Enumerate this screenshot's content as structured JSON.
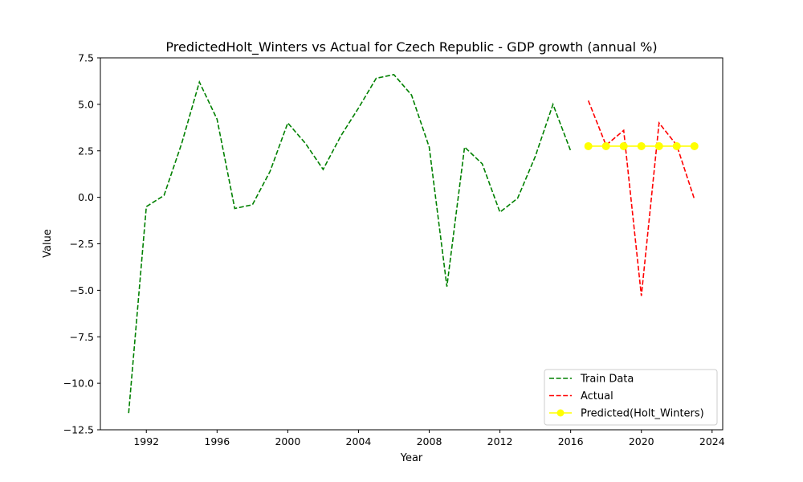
{
  "chart_data": {
    "type": "line",
    "title": "PredictedHolt_Winters vs Actual for Czech Republic - GDP growth (annual %)",
    "xlabel": "Year",
    "ylabel": "Value",
    "xlim": [
      1989.4,
      2024.6
    ],
    "ylim": [
      -12.5,
      7.5
    ],
    "xticks": [
      1992,
      1996,
      2000,
      2004,
      2008,
      2012,
      2016,
      2020,
      2024
    ],
    "xtick_labels": [
      "1992",
      "1996",
      "2000",
      "2004",
      "2008",
      "2012",
      "2016",
      "2020",
      "2024"
    ],
    "yticks": [
      -12.5,
      -10.0,
      -7.5,
      -5.0,
      -2.5,
      0.0,
      2.5,
      5.0,
      7.5
    ],
    "ytick_labels": [
      "−12.5",
      "−10.0",
      "−7.5",
      "−5.0",
      "−2.5",
      "0.0",
      "2.5",
      "5.0",
      "7.5"
    ],
    "grid": false,
    "legend_position": "lower-right",
    "series": [
      {
        "name": "Train Data",
        "color": "#008000",
        "style": "dashed",
        "x": [
          1991,
          1992,
          1993,
          1994,
          1995,
          1996,
          1997,
          1998,
          1999,
          2000,
          2001,
          2002,
          2003,
          2004,
          2005,
          2006,
          2007,
          2008,
          2009,
          2010,
          2011,
          2012,
          2013,
          2014,
          2015,
          2016
        ],
        "y": [
          -11.6,
          -0.5,
          0.1,
          2.9,
          6.2,
          4.2,
          -0.6,
          -0.4,
          1.4,
          4.0,
          2.9,
          1.5,
          3.3,
          4.8,
          6.4,
          6.6,
          5.5,
          2.7,
          -4.8,
          2.7,
          1.8,
          -0.8,
          -0.05,
          2.2,
          5.0,
          2.5
        ]
      },
      {
        "name": "Actual",
        "color": "#ff0000",
        "style": "dashed",
        "x": [
          2017,
          2018,
          2019,
          2020,
          2021,
          2022,
          2023
        ],
        "y": [
          5.2,
          2.8,
          3.6,
          -5.3,
          4.0,
          2.8,
          -0.1
        ]
      },
      {
        "name": "Predicted(Holt_Winters)",
        "color": "#ffff00",
        "style": "solid-marker",
        "x": [
          2017,
          2018,
          2019,
          2020,
          2021,
          2022,
          2023
        ],
        "y": [
          2.75,
          2.75,
          2.75,
          2.75,
          2.75,
          2.75,
          2.75
        ]
      }
    ]
  }
}
